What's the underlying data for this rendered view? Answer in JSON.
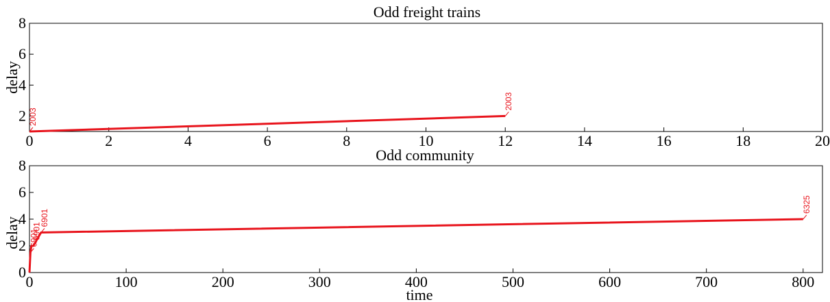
{
  "figure": {
    "line_color": "#e8141c"
  },
  "chart_data": [
    {
      "type": "line",
      "title": "Odd freight trains",
      "xlabel": "",
      "ylabel": "delay",
      "xlim": [
        0,
        20
      ],
      "ylim": [
        1,
        8
      ],
      "xticks": [
        0,
        2,
        4,
        6,
        8,
        10,
        12,
        14,
        16,
        18,
        20
      ],
      "yticks": [
        2,
        4,
        6,
        8
      ],
      "grid": false,
      "series": [
        {
          "x": [
            0,
            12
          ],
          "y": [
            1,
            2
          ]
        }
      ],
      "annotations": [
        {
          "x": 0,
          "y": 1,
          "text": "2003"
        },
        {
          "x": 12,
          "y": 2,
          "text": "2003"
        }
      ]
    },
    {
      "type": "line",
      "title": "Odd community",
      "xlabel": "time",
      "ylabel": "delay",
      "xlim": [
        0,
        820
      ],
      "ylim": [
        0,
        8
      ],
      "xticks": [
        0,
        100,
        200,
        300,
        400,
        500,
        600,
        700,
        800
      ],
      "yticks": [
        0,
        2,
        4,
        6,
        8
      ],
      "grid": false,
      "series": [
        {
          "x": [
            0,
            1,
            2,
            4,
            12,
            800
          ],
          "y": [
            0,
            1.5,
            2,
            2,
            3,
            4
          ]
        }
      ],
      "annotations": [
        {
          "x": 1,
          "y": 1.5,
          "text": "6901"
        },
        {
          "x": 4,
          "y": 2,
          "text": "6901"
        },
        {
          "x": 12,
          "y": 3,
          "text": "6901"
        },
        {
          "x": 800,
          "y": 4,
          "text": "6325"
        }
      ]
    }
  ]
}
